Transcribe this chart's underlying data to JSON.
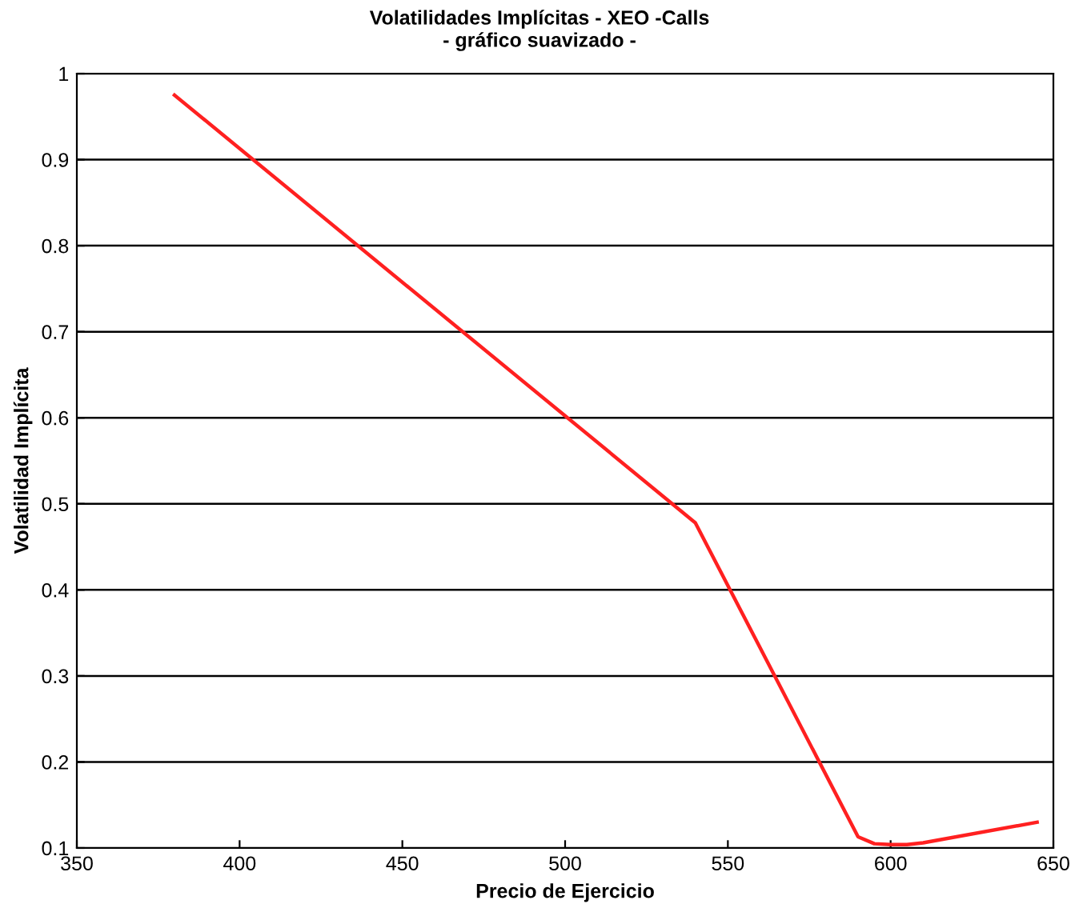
{
  "chart_data": {
    "type": "line",
    "title": "Volatilidades Implícitas - XEO -Calls",
    "subtitle": "- gráfico suavizado -",
    "xlabel": "Precio de Ejercicio",
    "ylabel": "Volatilidad Implícita",
    "series": [
      {
        "color": "#ff2020",
        "x": [
          380,
          540,
          590,
          595,
          600,
          605,
          610,
          645
        ],
        "values": [
          0.975,
          0.478,
          0.113,
          0.105,
          0.104,
          0.104,
          0.106,
          0.13
        ]
      }
    ],
    "xlim": [
      350,
      650
    ],
    "xticks": [
      350,
      400,
      450,
      500,
      550,
      600,
      650
    ],
    "ylim": [
      0.1,
      1
    ],
    "yticks": [
      0.1,
      0.2,
      0.3,
      0.4,
      0.5,
      0.6,
      0.7,
      0.8,
      0.9,
      1
    ],
    "grid": "y",
    "line_style": "solid"
  }
}
